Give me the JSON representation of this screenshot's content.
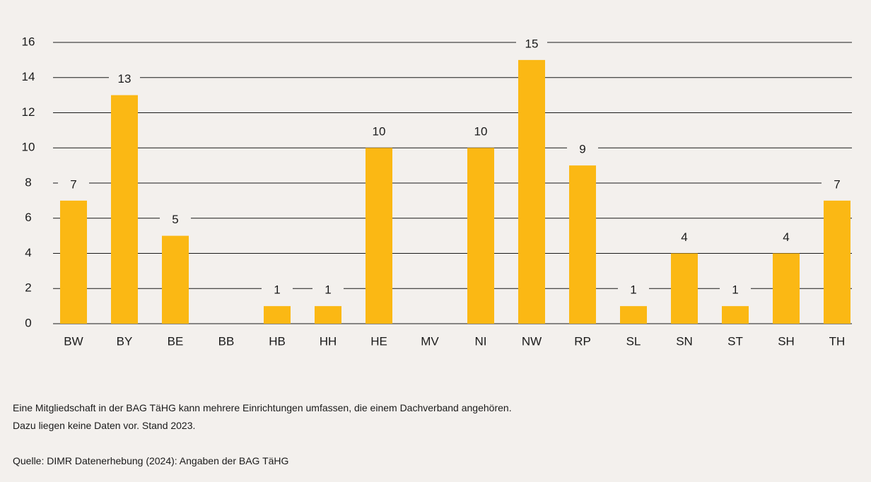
{
  "chart_data": {
    "type": "bar",
    "categories": [
      "BW",
      "BY",
      "BE",
      "BB",
      "HB",
      "HH",
      "HE",
      "MV",
      "NI",
      "NW",
      "RP",
      "SL",
      "SN",
      "ST",
      "SH",
      "TH"
    ],
    "values": [
      7,
      13,
      5,
      null,
      1,
      1,
      10,
      null,
      10,
      15,
      9,
      1,
      4,
      1,
      4,
      7
    ],
    "color": "#fbb814",
    "ylim": [
      0,
      16
    ],
    "yticks": [
      0,
      2,
      4,
      6,
      8,
      10,
      12,
      14,
      16
    ],
    "grid": true,
    "notes": [
      "Eine Mitgliedschaft in der BAG TäHG kann mehrere Einrichtungen umfassen, die einem Dachverband angehören.",
      "Dazu liegen keine Daten vor. Stand 2023."
    ],
    "source": "Quelle: DIMR Datenerhebung (2024): Angaben der BAG TäHG"
  }
}
